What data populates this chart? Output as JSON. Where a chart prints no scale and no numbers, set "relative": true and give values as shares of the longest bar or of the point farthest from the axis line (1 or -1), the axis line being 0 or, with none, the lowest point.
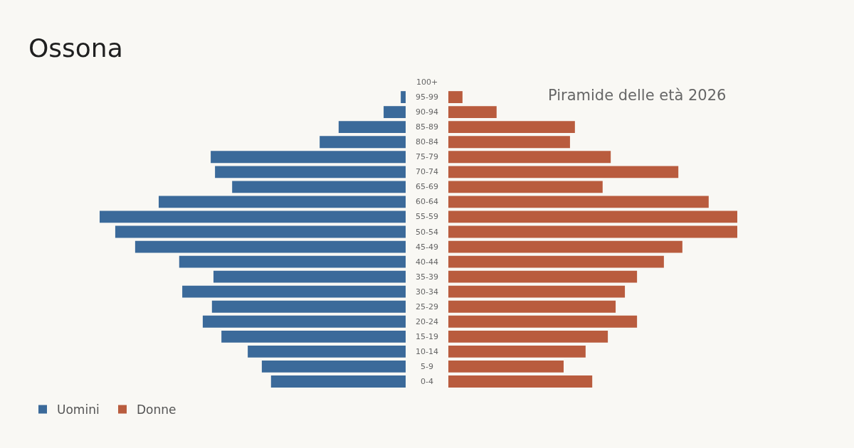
{
  "chart_data": [
    {
      "type": "bar",
      "orientation": "horizontal",
      "relative": true,
      "title": "Ossona",
      "categories": [
        "100+",
        "95-99",
        "90-94",
        "85-89",
        "80-84",
        "75-79",
        "70-74",
        "65-69",
        "60-64",
        "55-59",
        "50-54",
        "45-49",
        "40-44",
        "35-39",
        "30-34",
        "25-29",
        "20-24",
        "15-19",
        "10-14",
        "5-9",
        "0-4"
      ],
      "series": [
        {
          "name": "Uomini",
          "color": "#3b6a9a",
          "values": [
            0,
            -0.016,
            -0.072,
            -0.219,
            -0.281,
            -0.637,
            -0.623,
            -0.567,
            -0.807,
            -1,
            -0.949,
            -0.884,
            -0.74,
            -0.628,
            -0.73,
            -0.633,
            -0.663,
            -0.602,
            -0.516,
            -0.47,
            -0.44
          ]
        }
      ],
      "legend": "bottom left",
      "grid": false
    },
    {
      "type": "bar",
      "orientation": "horizontal",
      "relative": true,
      "subtitle": "Piramide delle età 2026",
      "categories": [
        null,
        null,
        null,
        null,
        null,
        null,
        null,
        null,
        null,
        null,
        null,
        null,
        null,
        null,
        null,
        null,
        null,
        null,
        null,
        null,
        null
      ],
      "series": [
        {
          "name": "Donne",
          "color": "#b95c3e",
          "values": [
            0,
            0.049,
            0.167,
            0.438,
            0.421,
            0.562,
            0.796,
            0.534,
            0.901,
            1,
            1,
            0.81,
            0.746,
            0.653,
            0.611,
            0.579,
            0.653,
            0.552,
            0.475,
            0.399,
            0.498
          ]
        }
      ],
      "legend": "bottom left",
      "grid": false
    }
  ]
}
